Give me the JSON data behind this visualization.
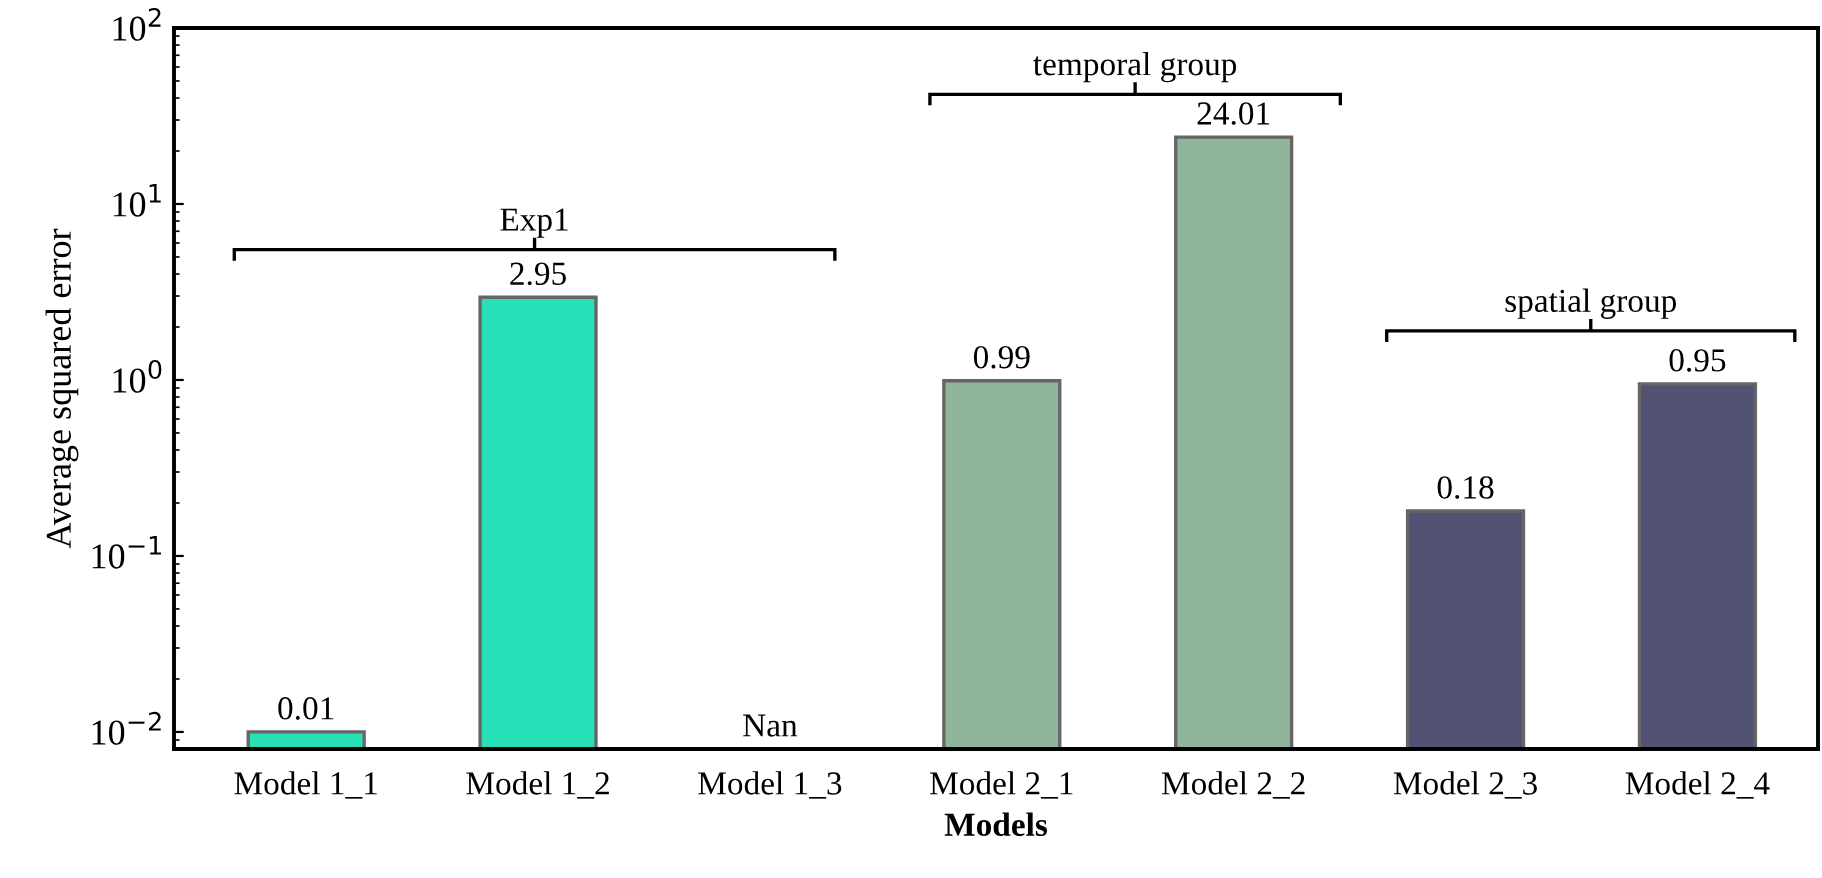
{
  "chart_data": {
    "type": "bar",
    "xlabel": "Models",
    "ylabel": "Average squared error",
    "categories": [
      "Model 1_1",
      "Model 1_2",
      "Model 1_3",
      "Model 2_1",
      "Model 2_2",
      "Model 2_3",
      "Model 2_4"
    ],
    "values": [
      0.01,
      2.95,
      null,
      0.99,
      24.01,
      0.18,
      0.95
    ],
    "value_labels": [
      "0.01",
      "2.95",
      "Nan",
      "0.99",
      "24.01",
      "0.18",
      "0.95"
    ],
    "colors": [
      "#26e0b8",
      "#26e0b8",
      "#26e0b8",
      "#8fb59a",
      "#8fb59a",
      "#525275",
      "#525275"
    ],
    "log": true,
    "ylim": [
      0.008,
      100
    ],
    "yticks": [
      {
        "value": 0.01,
        "label": "10$^{−2}$"
      },
      {
        "value": 0.1,
        "label": "10$^{−1}$"
      },
      {
        "value": 1,
        "label": "10$^{0}$"
      },
      {
        "value": 10,
        "label": "10$^{1}$"
      },
      {
        "value": 100,
        "label": "10$^{2}$"
      }
    ],
    "grid": false,
    "legend": false,
    "annotations": [
      "Exp1",
      "temporal group",
      "spatial group"
    ]
  }
}
